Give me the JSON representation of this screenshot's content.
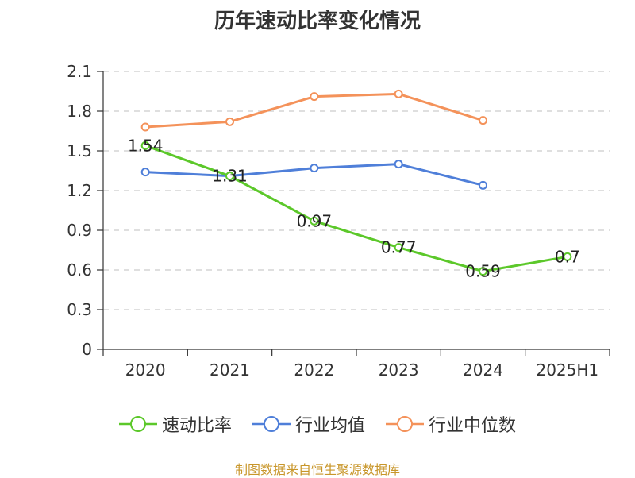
{
  "chart_data": {
    "type": "line",
    "title": "历年速动比率变化情况",
    "categories": [
      "2020",
      "2021",
      "2022",
      "2023",
      "2024",
      "2025H1"
    ],
    "yticks": [
      "0",
      "0.3",
      "0.6",
      "0.9",
      "1.2",
      "1.5",
      "1.8",
      "2.1"
    ],
    "ylim": [
      0,
      2.1
    ],
    "grid": true,
    "legend_position": "bottom",
    "series": [
      {
        "name": "速动比率",
        "color": "#5cc82a",
        "values": [
          1.54,
          1.31,
          0.97,
          0.77,
          0.59,
          0.7
        ],
        "labels": [
          "1.54",
          "1.31",
          "0.97",
          "0.77",
          "0.59",
          "0.7"
        ]
      },
      {
        "name": "行业均值",
        "color": "#4f7fd9",
        "values": [
          1.34,
          1.31,
          1.37,
          1.4,
          1.24,
          null
        ]
      },
      {
        "name": "行业中位数",
        "color": "#f4925a",
        "values": [
          1.68,
          1.72,
          1.91,
          1.93,
          1.73,
          null
        ]
      }
    ]
  },
  "source": "制图数据来自恒生聚源数据库"
}
